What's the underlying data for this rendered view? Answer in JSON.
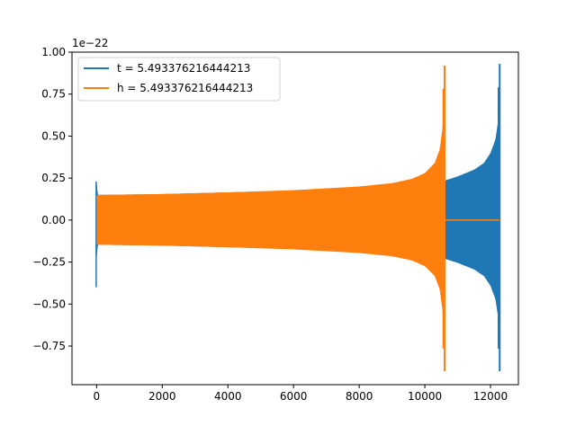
{
  "chart_data": {
    "type": "line",
    "title": "",
    "xlabel": "",
    "ylabel": "",
    "offset_label": "1e−22",
    "xlim": [
      -750,
      12850
    ],
    "ylim": [
      -0.98,
      1.0
    ],
    "x_ticks": [
      0,
      2000,
      4000,
      6000,
      8000,
      10000,
      12000
    ],
    "x_tick_labels": [
      "0",
      "2000",
      "4000",
      "6000",
      "8000",
      "10000",
      "12000"
    ],
    "y_ticks": [
      -0.75,
      -0.5,
      -0.25,
      0.0,
      0.25,
      0.5,
      0.75,
      1.0
    ],
    "y_tick_labels": [
      "−0.75",
      "−0.50",
      "−0.25",
      "0.00",
      "0.25",
      "0.50",
      "0.75",
      "1.00"
    ],
    "legend_position": "top-left",
    "series": [
      {
        "name": "t = 5.493376216444213",
        "color": "#1f77b4",
        "envelope": {
          "start_x": 0,
          "end_x": 12280,
          "start_spike_max": 0.23,
          "start_spike_min": -0.4,
          "x": [
            0,
            12,
            40,
            2000,
            4000,
            6000,
            8000,
            9500,
            10600,
            11000,
            11500,
            11800,
            12000,
            12150,
            12240,
            12270,
            12280
          ],
          "amplitude": [
            0.23,
            0.2,
            0.15,
            0.155,
            0.165,
            0.175,
            0.19,
            0.21,
            0.235,
            0.26,
            0.3,
            0.34,
            0.4,
            0.48,
            0.6,
            0.75,
            0.93
          ],
          "min_peak": -0.9
        }
      },
      {
        "name": "h = 5.493376216444213",
        "color": "#ff7f0e",
        "envelope": {
          "start_x": 0,
          "end_x": 10600,
          "tail_end_x": 12280,
          "x": [
            0,
            2000,
            4000,
            6000,
            8000,
            9000,
            9600,
            10000,
            10300,
            10450,
            10540,
            10580,
            10600
          ],
          "amplitude": [
            0.15,
            0.155,
            0.165,
            0.178,
            0.2,
            0.22,
            0.245,
            0.28,
            0.34,
            0.42,
            0.55,
            0.7,
            0.92
          ],
          "min_peak": -0.9
        }
      }
    ]
  }
}
